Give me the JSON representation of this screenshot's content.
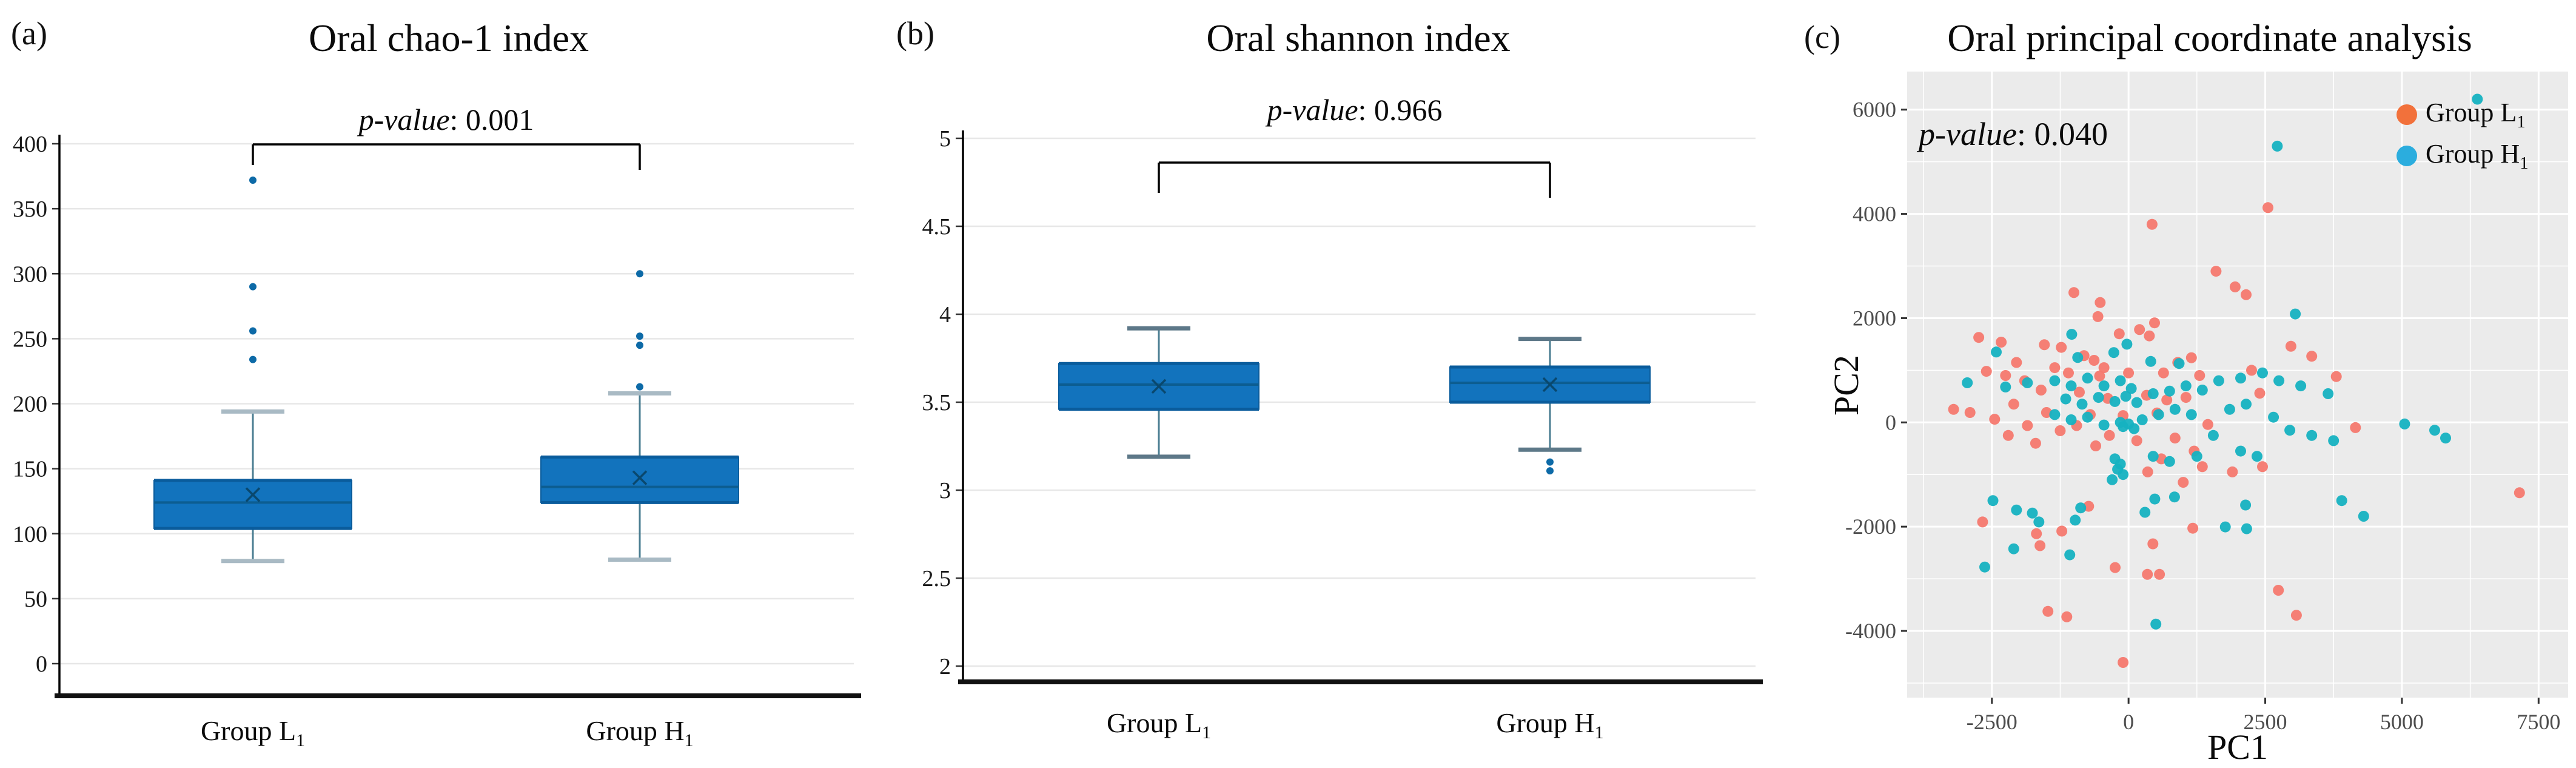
{
  "panels": {
    "a": {
      "label": "(a)",
      "p_prefix": "p-value",
      "p_suffix": ": 0.001"
    },
    "b": {
      "label": "(b)",
      "p_prefix": "p-value",
      "p_suffix": ": 0.966"
    },
    "c": {
      "label": "(c)",
      "p_prefix": "p-value",
      "p_suffix": ": 0.040",
      "xlabel": "PC1",
      "ylabel": "PC2"
    }
  },
  "colors": {
    "box_fill": "#1273bd",
    "box_edge": "#0a5c9c",
    "median_line": "#0c5d91",
    "whisker_line": "#4a7d91",
    "cap_light": "#a9bac4",
    "cap_dark": "#5d7888",
    "outlier_dot": "#0d6aa7",
    "mean_marker": "#09486e",
    "gridline_ab": "#e7e7e7",
    "panel_c_bg": "#ebebeb",
    "panel_c_grid": "#ffffff",
    "tick_label_c": "#4d4d4d",
    "series_L1": "#f5796f",
    "series_H1": "#16b2c1",
    "legend_L1": "#f2713b",
    "legend_H1": "#2badde"
  },
  "chart_data": [
    {
      "type": "box",
      "title": "Oral chao-1 index",
      "p_value": "0.001",
      "categories": [
        {
          "text": "Group L",
          "sub": "1"
        },
        {
          "text": "Group H",
          "sub": "1"
        }
      ],
      "ylim": [
        0,
        400
      ],
      "yticks": [
        400,
        350,
        300,
        250,
        200,
        150,
        100,
        50,
        0
      ],
      "grid": true,
      "groups": [
        {
          "name": "Group L1",
          "whisker_low": 79,
          "q1": 104,
          "median": 124,
          "q3": 141,
          "whisker_high": 194,
          "mean": 130,
          "outliers": [
            372,
            290,
            256,
            234
          ]
        },
        {
          "name": "Group H1",
          "whisker_low": 80,
          "q1": 124,
          "median": 136,
          "q3": 159,
          "whisker_high": 208,
          "mean": 143,
          "outliers": [
            300,
            252,
            245,
            213
          ]
        }
      ]
    },
    {
      "type": "box",
      "title": "Oral shannon index",
      "p_value": "0.966",
      "categories": [
        {
          "text": "Group L",
          "sub": "1"
        },
        {
          "text": "Group H",
          "sub": "1"
        }
      ],
      "ylim": [
        1.85,
        5.05
      ],
      "yticks": [
        5,
        4.5,
        4,
        3.5,
        3,
        2.5,
        2
      ],
      "grid": true,
      "groups": [
        {
          "name": "Group L1",
          "whisker_low": 3.19,
          "q1": 3.46,
          "median": 3.6,
          "q3": 3.72,
          "whisker_high": 3.92,
          "mean": 3.59,
          "outliers": []
        },
        {
          "name": "Group H1",
          "whisker_low": 3.23,
          "q1": 3.5,
          "median": 3.61,
          "q3": 3.7,
          "whisker_high": 3.86,
          "mean": 3.6,
          "outliers": [
            3.16,
            3.11
          ]
        }
      ]
    },
    {
      "type": "scatter",
      "title": "Oral principal coordinate analysis",
      "p_value": "0.040",
      "xlabel": "PC1",
      "ylabel": "PC2",
      "xlim": [
        -4050,
        8040
      ],
      "ylim": [
        -5280,
        6730
      ],
      "xticks": [
        -2500,
        0,
        2500,
        5000,
        7500
      ],
      "yticks": [
        6000,
        4000,
        2000,
        0,
        -2000,
        -4000
      ],
      "minor_xticks": [
        -3750,
        -1250,
        1250,
        3750,
        6250
      ],
      "minor_yticks": [
        5000,
        3000,
        1000,
        -1000,
        -3000,
        -5000
      ],
      "grid": true,
      "legend_position": "top-right",
      "legend": [
        {
          "text": "Group L",
          "sub": "1"
        },
        {
          "text": "Group H",
          "sub": "1"
        }
      ],
      "series": [
        {
          "name": "Group L1",
          "points": [
            [
              2550,
              4120
            ],
            [
              430,
              3800
            ],
            [
              1600,
              2900
            ],
            [
              1950,
              2600
            ],
            [
              2150,
              2450
            ],
            [
              -1000,
              2490
            ],
            [
              -520,
              2300
            ],
            [
              -560,
              2030
            ],
            [
              475,
              1910
            ],
            [
              200,
              1780
            ],
            [
              2970,
              1460
            ],
            [
              3350,
              1270
            ],
            [
              -2740,
              1630
            ],
            [
              -2330,
              1540
            ],
            [
              -1540,
              1490
            ],
            [
              -1230,
              1440
            ],
            [
              -815,
              1280
            ],
            [
              -630,
              1190
            ],
            [
              -170,
              1700
            ],
            [
              380,
              1660
            ],
            [
              1150,
              1240
            ],
            [
              2250,
              1000
            ],
            [
              -2600,
              980
            ],
            [
              -2250,
              900
            ],
            [
              -1100,
              950
            ],
            [
              -530,
              890
            ],
            [
              640,
              950
            ],
            [
              1300,
              900
            ],
            [
              3800,
              880
            ],
            [
              -1600,
              620
            ],
            [
              -900,
              580
            ],
            [
              -380,
              460
            ],
            [
              330,
              520
            ],
            [
              700,
              430
            ],
            [
              1050,
              480
            ],
            [
              2400,
              560
            ],
            [
              -2100,
              350
            ],
            [
              -2900,
              190
            ],
            [
              -1500,
              190
            ],
            [
              -700,
              150
            ],
            [
              -100,
              130
            ],
            [
              520,
              180
            ],
            [
              1450,
              -40
            ],
            [
              4150,
              -100
            ],
            [
              -3200,
              250
            ],
            [
              -2450,
              60
            ],
            [
              -1850,
              -60
            ],
            [
              -1250,
              -160
            ],
            [
              -950,
              -60
            ],
            [
              -350,
              -250
            ],
            [
              150,
              -350
            ],
            [
              850,
              -300
            ],
            [
              1200,
              -550
            ],
            [
              600,
              -700
            ],
            [
              1350,
              -850
            ],
            [
              -600,
              -450
            ],
            [
              -1700,
              -400
            ],
            [
              -2200,
              -250
            ],
            [
              350,
              -950
            ],
            [
              1000,
              -1150
            ],
            [
              1900,
              -950
            ],
            [
              2450,
              -850
            ],
            [
              7150,
              -1350
            ],
            [
              -2670,
              -1910
            ],
            [
              -730,
              -1610
            ],
            [
              -1220,
              -2085
            ],
            [
              -1685,
              -2135
            ],
            [
              -1620,
              -2365
            ],
            [
              -245,
              -2785
            ],
            [
              345,
              -2915
            ],
            [
              565,
              -2915
            ],
            [
              445,
              -2330
            ],
            [
              1175,
              -2030
            ],
            [
              -1475,
              -3625
            ],
            [
              -1130,
              -3730
            ],
            [
              -100,
              -4605
            ],
            [
              3070,
              -3700
            ],
            [
              2740,
              -3220
            ],
            [
              -1900,
              800
            ],
            [
              -1350,
              1050
            ],
            [
              -2050,
              1150
            ],
            [
              -450,
              1050
            ],
            [
              0,
              950
            ],
            [
              900,
              1150
            ]
          ]
        },
        {
          "name": "Group H1",
          "points": [
            [
              -1040,
              1690
            ],
            [
              -30,
              1500
            ],
            [
              -2420,
              1350
            ],
            [
              -930,
              1245
            ],
            [
              -270,
              1340
            ],
            [
              405,
              1170
            ],
            [
              925,
              1130
            ],
            [
              3050,
              2080
            ],
            [
              -2950,
              760
            ],
            [
              -2250,
              680
            ],
            [
              -1850,
              760
            ],
            [
              -1350,
              800
            ],
            [
              -1050,
              700
            ],
            [
              -750,
              850
            ],
            [
              -450,
              700
            ],
            [
              -150,
              800
            ],
            [
              50,
              650
            ],
            [
              -1150,
              450
            ],
            [
              -850,
              350
            ],
            [
              -550,
              480
            ],
            [
              -250,
              400
            ],
            [
              -50,
              500
            ],
            [
              150,
              380
            ],
            [
              450,
              550
            ],
            [
              750,
              600
            ],
            [
              1050,
              700
            ],
            [
              1350,
              620
            ],
            [
              1650,
              800
            ],
            [
              2050,
              850
            ],
            [
              2450,
              950
            ],
            [
              2750,
              800
            ],
            [
              3150,
              700
            ],
            [
              3650,
              550
            ],
            [
              -1350,
              150
            ],
            [
              -1050,
              50
            ],
            [
              -750,
              100
            ],
            [
              -450,
              -50
            ],
            [
              -150,
              0
            ],
            [
              -100,
              -80
            ],
            [
              0,
              -30
            ],
            [
              100,
              -120
            ],
            [
              250,
              50
            ],
            [
              550,
              150
            ],
            [
              850,
              250
            ],
            [
              1150,
              150
            ],
            [
              1850,
              250
            ],
            [
              2150,
              350
            ],
            [
              2650,
              100
            ],
            [
              2950,
              -150
            ],
            [
              3350,
              -250
            ],
            [
              3750,
              -350
            ],
            [
              5050,
              -30
            ],
            [
              1550,
              -250
            ],
            [
              -250,
              -700
            ],
            [
              -150,
              -800
            ],
            [
              -200,
              -900
            ],
            [
              -100,
              -1000
            ],
            [
              -300,
              -1100
            ],
            [
              450,
              -650
            ],
            [
              750,
              -750
            ],
            [
              1250,
              -650
            ],
            [
              2050,
              -550
            ],
            [
              2350,
              -650
            ],
            [
              -2480,
              -1500
            ],
            [
              -2050,
              -1680
            ],
            [
              -1760,
              -1740
            ],
            [
              -1640,
              -1910
            ],
            [
              -975,
              -1875
            ],
            [
              -875,
              -1640
            ],
            [
              -2100,
              -2425
            ],
            [
              -1075,
              -2540
            ],
            [
              -2630,
              -2775
            ],
            [
              300,
              -1725
            ],
            [
              480,
              -1470
            ],
            [
              840,
              -1430
            ],
            [
              1770,
              -2005
            ],
            [
              2140,
              -1585
            ],
            [
              2160,
              -2040
            ],
            [
              500,
              -3870
            ],
            [
              3900,
              -1500
            ],
            [
              4300,
              -1800
            ],
            [
              5600,
              -150
            ],
            [
              5800,
              -300
            ],
            [
              2720,
              5300
            ],
            [
              6380,
              6200
            ]
          ]
        }
      ]
    }
  ]
}
